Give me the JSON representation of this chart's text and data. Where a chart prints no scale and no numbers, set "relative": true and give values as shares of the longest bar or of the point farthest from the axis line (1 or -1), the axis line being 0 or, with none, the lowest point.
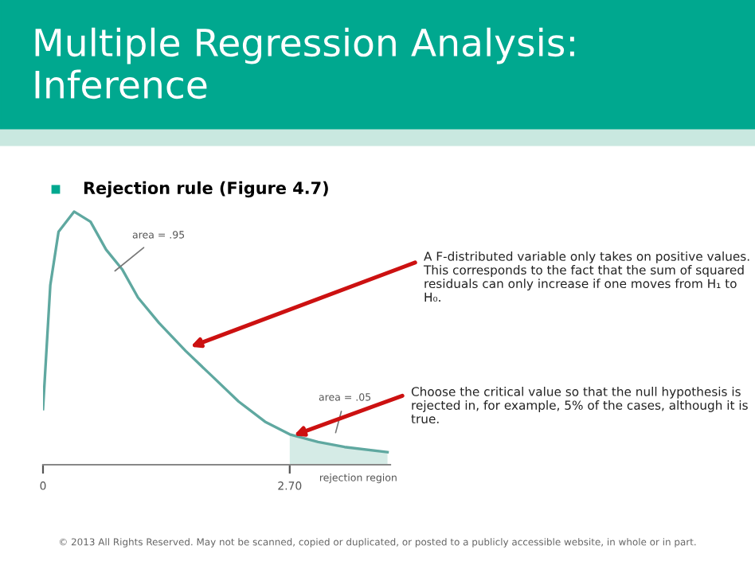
{
  "chart_data": {
    "type": "line",
    "title": "Multiple Regression Analysis: Inference",
    "subtitle": "Rejection rule (Figure 4.7)",
    "relative": true,
    "xlim": [
      0,
      3.8
    ],
    "xticks": [
      0,
      {
        "value": 2.7,
        "label": "2.70"
      }
    ],
    "tick_labels": "x",
    "grid": false,
    "series": [
      {
        "color": "#5fa8a0",
        "x": [
          0,
          0.08,
          0.17,
          0.34,
          0.52,
          0.69,
          0.87,
          1.04,
          1.27,
          1.56,
          1.85,
          2.14,
          2.43,
          2.7,
          3.01,
          3.3,
          3.77
        ],
        "values": [
          0.22,
          0.71,
          0.92,
          1.0,
          0.96,
          0.85,
          0.77,
          0.66,
          0.56,
          0.45,
          0.35,
          0.25,
          0.17,
          0.12,
          0.09,
          0.07,
          0.05
        ]
      },
      {
        "type": "area",
        "color": "#d5ebe6",
        "x": [
          2.7,
          3.01,
          3.3,
          3.77
        ],
        "values": [
          0.12,
          0.09,
          0.07,
          0.05
        ]
      }
    ],
    "annotations": [
      "area = .95",
      {
        "text": "area = .05",
        "x": 3.19,
        "y": 0.11
      },
      {
        "text": "rejection region",
        "x": 3.45,
        "y": 0
      },
      {
        "text": "A F-distributed variable only takes on positive values. This corresponds to the fact that the sum of squared residuals can only increase if one moves from H₁ to H₀.",
        "x": 1.57,
        "y": 0.46
      },
      {
        "text": "Choose the critical value so that the null hypothesis is rejected in, for example, 5% of the cases, although it is true.",
        "x": 2.7,
        "y": 0.11
      },
      "© 2013 All Rights Reserved. May not be scanned, copied or duplicated, or posted to a publicly accessible website, in whole or in part."
    ]
  }
}
